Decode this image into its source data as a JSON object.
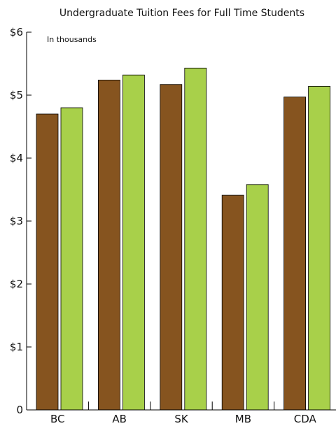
{
  "chart_data": {
    "type": "bar",
    "title": "Undergraduate Tuition Fees for Full Time Students",
    "subtitle": "In thousands",
    "xlabel": "",
    "ylabel": "",
    "categories": [
      "BC",
      "AB",
      "SK",
      "MB",
      "CDA"
    ],
    "series": [
      {
        "values": [
          4.7,
          5.24,
          5.17,
          3.41,
          4.97
        ],
        "color": "#86541F"
      },
      {
        "values": [
          4.8,
          5.32,
          5.43,
          3.58,
          5.14
        ],
        "color": "#A8D04A"
      }
    ],
    "yticks": [
      {
        "value": 0,
        "label": "0"
      },
      {
        "value": 1,
        "label": "$1"
      },
      {
        "value": 2,
        "label": "$2"
      },
      {
        "value": 3,
        "label": "$3"
      },
      {
        "value": 4,
        "label": "$4"
      },
      {
        "value": 5,
        "label": "$5"
      },
      {
        "value": 6,
        "label": "$6"
      }
    ],
    "ylim": [
      0,
      6
    ],
    "grid": false,
    "legend": "none",
    "colors": {
      "axis": "#000000",
      "bar_stroke": "#000000"
    }
  }
}
